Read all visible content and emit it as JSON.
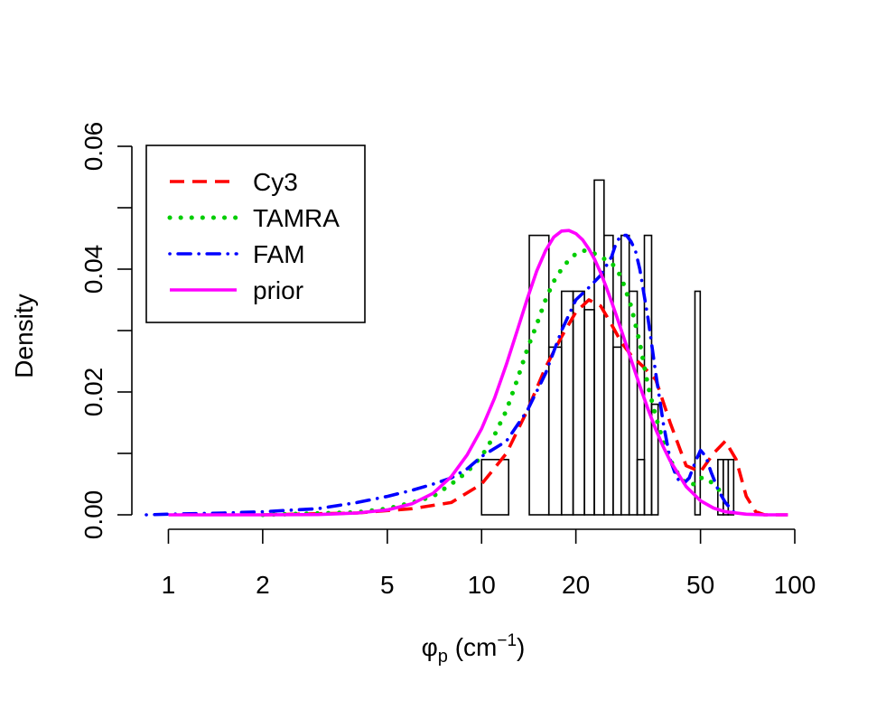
{
  "chart_data": {
    "type": "histogram-density",
    "title": "",
    "xlabel": "φp (cm−1)",
    "xlabel_parts": {
      "main": "φ",
      "sub": "p",
      "unit_open": " (cm",
      "sup": "−1",
      "unit_close": ")"
    },
    "ylabel": "Density",
    "x_scale": "log10",
    "xlim": [
      0.85,
      100
    ],
    "ylim": [
      0,
      0.06
    ],
    "x_ticks": [
      1,
      2,
      5,
      10,
      20,
      50,
      100
    ],
    "x_tick_labels": [
      "1",
      "2",
      "5",
      "10",
      "20",
      "50",
      "100"
    ],
    "y_ticks": [
      0,
      0.01,
      0.02,
      0.03,
      0.04,
      0.05,
      0.06
    ],
    "y_tick_labels": [
      "0.00",
      "",
      "0.02",
      "",
      "0.04",
      "",
      "0.06"
    ],
    "legend_position": "top-left",
    "histogram": [
      {
        "x0": 10.0,
        "x1": 12.2,
        "density": 0.009
      },
      {
        "x0": 14.2,
        "x1": 16.4,
        "density": 0.0455
      },
      {
        "x0": 16.4,
        "x1": 18.0,
        "density": 0.0273
      },
      {
        "x0": 18.0,
        "x1": 19.6,
        "density": 0.0364
      },
      {
        "x0": 19.6,
        "x1": 21.3,
        "density": 0.0364
      },
      {
        "x0": 21.3,
        "x1": 22.9,
        "density": 0.0334
      },
      {
        "x0": 22.9,
        "x1": 24.6,
        "density": 0.0545
      },
      {
        "x0": 24.6,
        "x1": 26.3,
        "density": 0.0455
      },
      {
        "x0": 26.3,
        "x1": 27.9,
        "density": 0.0273
      },
      {
        "x0": 27.9,
        "x1": 29.6,
        "density": 0.0455
      },
      {
        "x0": 29.6,
        "x1": 31.4,
        "density": 0.0364
      },
      {
        "x0": 31.4,
        "x1": 33.1,
        "density": 0.009
      },
      {
        "x0": 33.1,
        "x1": 34.9,
        "density": 0.0455
      },
      {
        "x0": 34.9,
        "x1": 36.6,
        "density": 0.018
      },
      {
        "x0": 48.0,
        "x1": 49.9,
        "density": 0.0364
      },
      {
        "x0": 56.8,
        "x1": 59.1,
        "density": 0.009
      },
      {
        "x0": 59.1,
        "x1": 61.3,
        "density": 0.009
      },
      {
        "x0": 61.3,
        "x1": 63.8,
        "density": 0.009
      }
    ],
    "series": [
      {
        "name": "Cy3",
        "color": "#ff0000",
        "dash": "dashed",
        "x": [
          2.0,
          4.0,
          6.0,
          8.0,
          10.0,
          12.0,
          14.0,
          16.0,
          18.0,
          20.0,
          22.0,
          24.0,
          26.0,
          28.0,
          30.0,
          33.0,
          36.0,
          40.0,
          45.0,
          50.0,
          55.0,
          60.0,
          65.0,
          70.0,
          75.0,
          80.0,
          90.0,
          95.0
        ],
        "y": [
          0.0,
          0.0003,
          0.001,
          0.002,
          0.005,
          0.01,
          0.017,
          0.024,
          0.029,
          0.033,
          0.035,
          0.034,
          0.031,
          0.028,
          0.026,
          0.024,
          0.022,
          0.015,
          0.008,
          0.007,
          0.01,
          0.012,
          0.009,
          0.003,
          0.0005,
          0.0,
          0.0,
          0.0
        ]
      },
      {
        "name": "TAMRA",
        "color": "#00cd00",
        "dash": "dotted",
        "x": [
          2.0,
          4.0,
          5.0,
          6.0,
          7.0,
          8.0,
          9.0,
          10.0,
          11.0,
          12.0,
          13.0,
          14.0,
          15.0,
          16.0,
          17.0,
          18.0,
          19.0,
          20.0,
          21.0,
          22.0,
          23.0,
          24.0,
          25.0,
          26.0,
          27.0,
          28.0,
          30.0,
          32.0,
          34.0,
          36.0,
          38.0,
          40.0,
          42.0,
          45.0,
          48.0,
          50.0,
          52.0,
          55.0,
          60.0
        ],
        "y": [
          0.0,
          0.0004,
          0.001,
          0.002,
          0.003,
          0.005,
          0.007,
          0.0095,
          0.013,
          0.017,
          0.022,
          0.027,
          0.031,
          0.035,
          0.038,
          0.04,
          0.0415,
          0.0425,
          0.043,
          0.043,
          0.0425,
          0.042,
          0.0415,
          0.041,
          0.04,
          0.0385,
          0.034,
          0.028,
          0.021,
          0.016,
          0.012,
          0.009,
          0.007,
          0.005,
          0.005,
          0.006,
          0.006,
          0.005,
          0.003
        ]
      },
      {
        "name": "FAM",
        "color": "#0000ff",
        "dash": "dotdash",
        "x": [
          0.85,
          1.0,
          1.5,
          2.0,
          3.0,
          4.0,
          5.0,
          6.0,
          7.0,
          8.0,
          9.0,
          10.0,
          12.0,
          14.0,
          16.0,
          18.0,
          20.0,
          22.0,
          24.0,
          26.0,
          27.0,
          28.0,
          29.0,
          30.0,
          31.0,
          32.0,
          34.0,
          36.0,
          38.0,
          40.0,
          42.0,
          44.0,
          46.0,
          48.0,
          50.0,
          52.0,
          54.0,
          57.0,
          60.0,
          65.0
        ],
        "y": [
          0.0,
          0.0001,
          0.0003,
          0.0005,
          0.001,
          0.002,
          0.003,
          0.004,
          0.005,
          0.006,
          0.0075,
          0.0095,
          0.012,
          0.017,
          0.023,
          0.03,
          0.035,
          0.037,
          0.039,
          0.042,
          0.0445,
          0.0455,
          0.0455,
          0.0445,
          0.043,
          0.04,
          0.032,
          0.023,
          0.015,
          0.009,
          0.006,
          0.005,
          0.006,
          0.0085,
          0.0105,
          0.0095,
          0.007,
          0.004,
          0.002,
          0.0
        ]
      },
      {
        "name": "prior",
        "color": "#ff00ff",
        "dash": "solid",
        "x": [
          1.0,
          2.0,
          3.0,
          4.0,
          5.0,
          6.0,
          7.0,
          8.0,
          9.0,
          10.0,
          11.0,
          12.0,
          13.0,
          14.0,
          15.0,
          16.0,
          17.0,
          18.0,
          19.0,
          20.0,
          21.0,
          22.0,
          23.0,
          24.0,
          25.0,
          26.0,
          27.0,
          28.0,
          30.0,
          32.0,
          34.0,
          36.0,
          38.0,
          40.0,
          45.0,
          50.0,
          55.0,
          60.0,
          70.0,
          80.0,
          95.0
        ],
        "y": [
          0.0,
          0.0,
          5e-05,
          0.0003,
          0.0008,
          0.0018,
          0.0035,
          0.0062,
          0.0098,
          0.014,
          0.019,
          0.0245,
          0.03,
          0.0352,
          0.0397,
          0.043,
          0.0452,
          0.0462,
          0.0463,
          0.0458,
          0.0448,
          0.0433,
          0.0415,
          0.0394,
          0.0371,
          0.0347,
          0.0323,
          0.0299,
          0.0253,
          0.021,
          0.0172,
          0.0139,
          0.0111,
          0.0088,
          0.0046,
          0.0023,
          0.0011,
          0.0005,
          0.0001,
          0.0,
          0.0
        ]
      }
    ]
  }
}
